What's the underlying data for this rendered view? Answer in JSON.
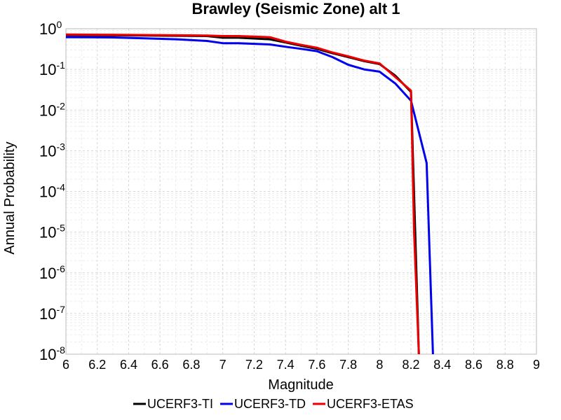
{
  "chart_data": {
    "type": "line",
    "title": "Brawley (Seismic Zone) alt 1",
    "xlabel": "Magnitude",
    "ylabel": "Annual Probability",
    "xlim": [
      6,
      9
    ],
    "ylim": [
      1e-08,
      1
    ],
    "yscale": "log",
    "xticks": [
      "6",
      "6.2",
      "6.4",
      "6.6",
      "6.8",
      "7",
      "7.2",
      "7.4",
      "7.6",
      "7.8",
      "8",
      "8.2",
      "8.4",
      "8.6",
      "8.8",
      "9"
    ],
    "yticks": [
      {
        "value": 1,
        "base": "10",
        "exp": "0"
      },
      {
        "value": 0.1,
        "base": "10",
        "exp": "-1"
      },
      {
        "value": 0.01,
        "base": "10",
        "exp": "-2"
      },
      {
        "value": 0.001,
        "base": "10",
        "exp": "-3"
      },
      {
        "value": 0.0001,
        "base": "10",
        "exp": "-4"
      },
      {
        "value": 1e-05,
        "base": "10",
        "exp": "-5"
      },
      {
        "value": 1e-06,
        "base": "10",
        "exp": "-6"
      },
      {
        "value": 1e-07,
        "base": "10",
        "exp": "-7"
      },
      {
        "value": 1e-08,
        "base": "10",
        "exp": "-8"
      }
    ],
    "grid": true,
    "legend_position": "bottom",
    "series": [
      {
        "name": "UCERF3-TI",
        "color": "#000000",
        "x": [
          6.0,
          6.3,
          6.5,
          6.7,
          6.9,
          7.0,
          7.1,
          7.3,
          7.4,
          7.5,
          7.6,
          7.7,
          7.8,
          7.9,
          8.0,
          8.1,
          8.2,
          8.25
        ],
        "y": [
          0.7,
          0.69,
          0.68,
          0.67,
          0.66,
          0.6,
          0.6,
          0.55,
          0.46,
          0.38,
          0.32,
          0.25,
          0.2,
          0.16,
          0.135,
          0.07,
          0.028,
          1e-08
        ]
      },
      {
        "name": "UCERF3-TD",
        "color": "#0000ee",
        "x": [
          6.0,
          6.3,
          6.5,
          6.7,
          6.9,
          7.0,
          7.1,
          7.3,
          7.4,
          7.5,
          7.6,
          7.7,
          7.8,
          7.9,
          8.0,
          8.1,
          8.2,
          8.3,
          8.34
        ],
        "y": [
          0.62,
          0.61,
          0.58,
          0.55,
          0.5,
          0.44,
          0.44,
          0.41,
          0.36,
          0.32,
          0.28,
          0.2,
          0.13,
          0.1,
          0.088,
          0.045,
          0.017,
          0.0005,
          1e-08
        ]
      },
      {
        "name": "UCERF3-ETAS",
        "color": "#ee0000",
        "x": [
          6.0,
          6.3,
          6.5,
          6.7,
          6.9,
          7.0,
          7.1,
          7.3,
          7.4,
          7.5,
          7.6,
          7.7,
          7.8,
          7.9,
          8.0,
          8.1,
          8.2,
          8.22,
          8.25
        ],
        "y": [
          0.72,
          0.71,
          0.7,
          0.69,
          0.68,
          0.66,
          0.66,
          0.62,
          0.48,
          0.4,
          0.34,
          0.26,
          0.21,
          0.165,
          0.14,
          0.065,
          0.03,
          1e-05,
          1e-08
        ]
      }
    ]
  }
}
